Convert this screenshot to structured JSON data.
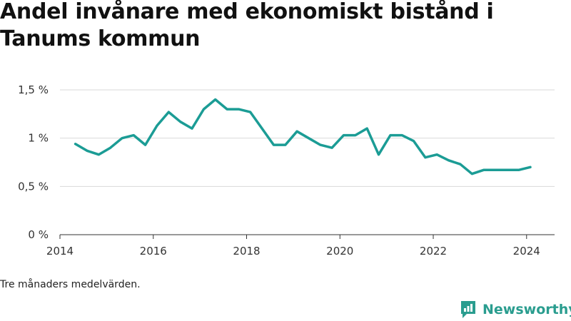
{
  "header": {
    "title": "Andel invånare med ekonomiskt bistånd i Tanums kommun"
  },
  "footer": {
    "note": "Tre månaders medelvärden.",
    "brand": "Newsworthy",
    "brand_color": "#2a9d8f"
  },
  "chart_data": {
    "type": "line",
    "title": "Andel invånare med ekonomiskt bistånd i Tanums kommun",
    "xlabel": "",
    "ylabel": "",
    "xlim": [
      2014,
      2024.6
    ],
    "ylim": [
      0,
      1.5
    ],
    "grid": true,
    "legend": "none",
    "line_color": "#1b9c95",
    "x_ticks": [
      {
        "value": 2014,
        "label": "2014"
      },
      {
        "value": 2016,
        "label": "2016"
      },
      {
        "value": 2018,
        "label": "2018"
      },
      {
        "value": 2020,
        "label": "2020"
      },
      {
        "value": 2022,
        "label": "2022"
      },
      {
        "value": 2024,
        "label": "2024"
      }
    ],
    "y_ticks": [
      {
        "value": 0,
        "label": "0 %"
      },
      {
        "value": 0.5,
        "label": "0,5 %"
      },
      {
        "value": 1,
        "label": "1 %"
      },
      {
        "value": 1.5,
        "label": "1,5 %"
      }
    ],
    "series": [
      {
        "x": [
          2014.33,
          2014.58,
          2014.83,
          2015.08,
          2015.33,
          2015.58,
          2015.83,
          2016.08,
          2016.33,
          2016.58,
          2016.83,
          2017.08,
          2017.33,
          2017.58,
          2017.83,
          2018.08,
          2018.33,
          2018.58,
          2018.83,
          2019.08,
          2019.33,
          2019.58,
          2019.83,
          2020.08,
          2020.33,
          2020.58,
          2020.83,
          2021.08,
          2021.33,
          2021.58,
          2021.83,
          2022.08,
          2022.33,
          2022.58,
          2022.83,
          2023.08,
          2023.33,
          2023.58,
          2023.83,
          2024.08
        ],
        "values": [
          0.94,
          0.87,
          0.83,
          0.9,
          1.0,
          1.03,
          0.93,
          1.13,
          1.27,
          1.17,
          1.1,
          1.3,
          1.4,
          1.3,
          1.3,
          1.27,
          1.1,
          0.93,
          0.93,
          1.07,
          1.0,
          0.93,
          0.9,
          1.03,
          1.03,
          1.1,
          0.83,
          1.03,
          1.03,
          0.97,
          0.8,
          0.83,
          0.77,
          0.73,
          0.63,
          0.67,
          0.67,
          0.67,
          0.67,
          0.7
        ]
      }
    ]
  }
}
